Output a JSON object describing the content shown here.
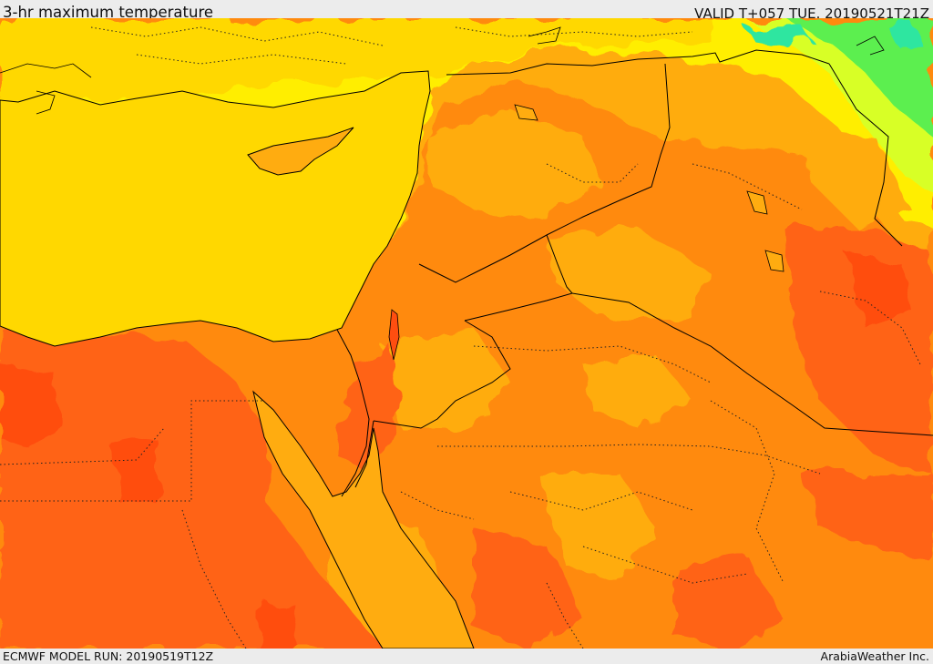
{
  "header": {
    "title": "3-hr maximum temperature",
    "valid": "VALID T+057 TUE. 20190521T21Z"
  },
  "footer": {
    "model_run": "ECMWF MODEL RUN: 20190519T12Z",
    "credit": "ArabiaWeather Inc."
  },
  "palette": {
    "deep_red": "#ff4e10",
    "red_orange": "#ff6418",
    "orange": "#ff8a0e",
    "light_orange": "#ffac10",
    "sea_yellow": "#ffd800",
    "yellow": "#ffee00",
    "lime": "#d8ff28",
    "green": "#5cef50",
    "cyan_green": "#2ee6a0"
  }
}
